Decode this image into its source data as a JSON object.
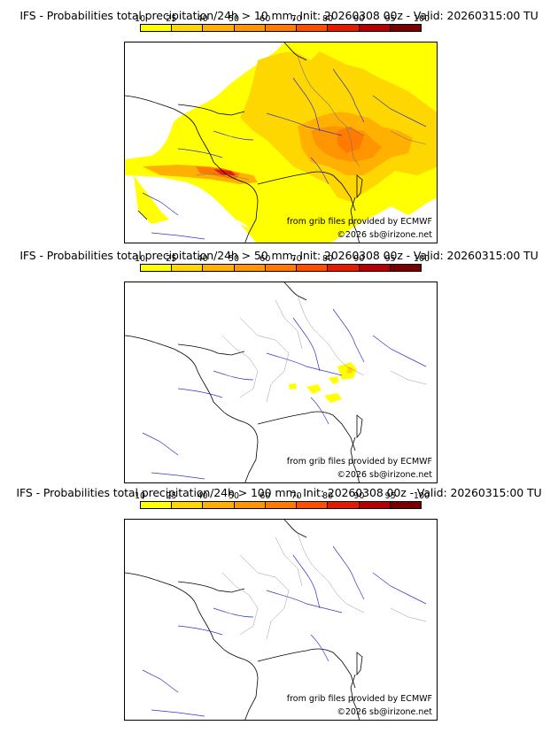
{
  "panels": [
    {
      "title": "IFS - Probabilities total precipitation/24h > 10 mm, Init: 20260308 00z - Valid: 20260315:00 TU",
      "threshold": "> 10 mm",
      "credit_source": "from grib files provided by ECMWF",
      "credit_copyright": "©2026 sb@irizone.net"
    },
    {
      "title": "IFS - Probabilities total precipitation/24h > 50 mm, Init: 20260308 00z - Valid: 20260315:00 TU",
      "threshold": "> 50 mm",
      "credit_source": "from grib files provided by ECMWF",
      "credit_copyright": "©2026 sb@irizone.net"
    },
    {
      "title": "IFS - Probabilities total precipitation/24h > 100 mm, Init: 20260308 00z - Valid: 20260315:00 TU",
      "threshold": "> 100 mm",
      "credit_source": "from grib files provided by ECMWF",
      "credit_copyright": "©2026 sb@irizone.net"
    }
  ],
  "legend": {
    "ticks": [
      "10",
      "25",
      "40",
      "50",
      "60",
      "70",
      "80",
      "90",
      "95",
      "100"
    ],
    "colors": [
      "#ffff00",
      "#ffd700",
      "#ffb000",
      "#ff9500",
      "#ff7a00",
      "#ff4e00",
      "#e61a00",
      "#b40000",
      "#7a0000"
    ]
  },
  "colors": {
    "coast": "#000000",
    "rivers": "#3333cc",
    "borders": "#aaaaaa"
  }
}
